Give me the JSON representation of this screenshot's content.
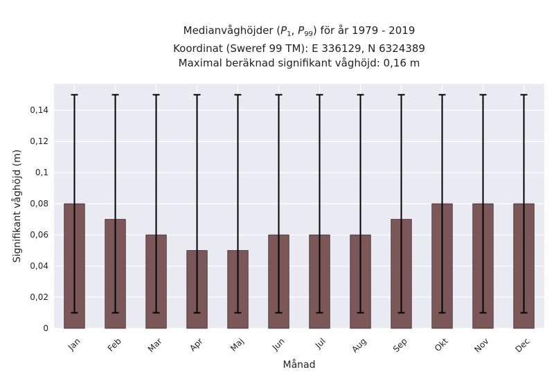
{
  "title": {
    "line1_prefix": "Medianvåghöjder (",
    "line1_p1": "P",
    "line1_sub1": "1",
    "line1_sep": ", ",
    "line1_p2": "P",
    "line1_sub2": "99",
    "line1_suffix": ") för år 1979 - 2019",
    "line2": "Koordinat (Sweref 99 TM): E 336129, N 6324389",
    "line3": "Maximal beräknad signifikant våghöjd: 0,16 m"
  },
  "chart_data": {
    "type": "bar",
    "categories": [
      "Jan",
      "Feb",
      "Mar",
      "Apr",
      "Maj",
      "Jun",
      "Jul",
      "Aug",
      "Sep",
      "Okt",
      "Nov",
      "Dec"
    ],
    "values": [
      0.08,
      0.07,
      0.06,
      0.05,
      0.05,
      0.06,
      0.06,
      0.06,
      0.07,
      0.08,
      0.08,
      0.08
    ],
    "error_low": [
      0.01,
      0.01,
      0.01,
      0.01,
      0.01,
      0.01,
      0.01,
      0.01,
      0.01,
      0.01,
      0.01,
      0.01
    ],
    "error_high": [
      0.15,
      0.15,
      0.15,
      0.15,
      0.15,
      0.15,
      0.15,
      0.15,
      0.15,
      0.15,
      0.15,
      0.15
    ],
    "xlabel": "Månad",
    "ylabel": "Signifikant våghöjd (m)",
    "ylim": [
      0,
      0.157
    ],
    "yticks": [
      0,
      0.02,
      0.04,
      0.06,
      0.08,
      0.1,
      0.12,
      0.14
    ],
    "ytick_labels": [
      "0",
      "0,02",
      "0,04",
      "0,06",
      "0,08",
      "0,1",
      "0,12",
      "0,14"
    ],
    "grid": true,
    "bar_color": "#7b5757",
    "bar_edge_color": "#3a2a2a",
    "plot_background": "#eaeaf2",
    "errorbar_color": "#000000"
  }
}
